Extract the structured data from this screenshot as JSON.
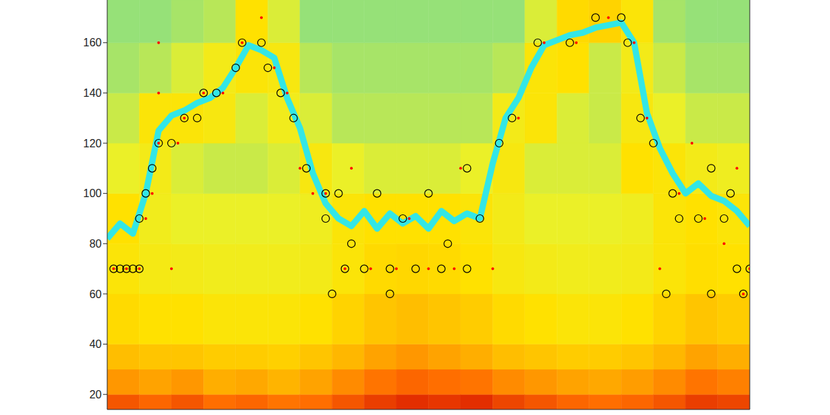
{
  "chart_data": {
    "type": "heatmap",
    "xlim": [
      0,
      100
    ],
    "ylim": [
      14,
      177
    ],
    "yticks": [
      20,
      40,
      60,
      80,
      100,
      120,
      140,
      160
    ],
    "tick_labels": "y",
    "heatmap": {
      "x_edges": [
        0,
        5,
        10,
        15,
        20,
        25,
        30,
        35,
        40,
        45,
        50,
        55,
        60,
        65,
        70,
        75,
        80,
        85,
        90,
        95,
        100
      ],
      "y_edges": [
        14,
        20,
        30,
        40,
        60,
        80,
        100,
        120,
        140,
        160,
        177
      ],
      "values": [
        [
          0.9,
          0.88,
          0.9,
          0.87,
          0.88,
          0.86,
          0.87,
          0.9,
          0.93,
          0.95,
          0.94,
          0.95,
          0.92,
          0.9,
          0.88,
          0.87,
          0.88,
          0.9,
          0.93,
          0.92
        ],
        [
          0.8,
          0.78,
          0.8,
          0.76,
          0.77,
          0.75,
          0.78,
          0.82,
          0.86,
          0.88,
          0.87,
          0.86,
          0.82,
          0.8,
          0.78,
          0.77,
          0.79,
          0.82,
          0.86,
          0.84
        ],
        [
          0.72,
          0.7,
          0.7,
          0.68,
          0.68,
          0.67,
          0.7,
          0.74,
          0.78,
          0.8,
          0.78,
          0.76,
          0.72,
          0.7,
          0.68,
          0.68,
          0.7,
          0.74,
          0.78,
          0.76
        ],
        [
          0.64,
          0.62,
          0.62,
          0.6,
          0.6,
          0.6,
          0.62,
          0.66,
          0.7,
          0.72,
          0.7,
          0.68,
          0.64,
          0.62,
          0.6,
          0.6,
          0.62,
          0.66,
          0.7,
          0.68
        ],
        [
          0.6,
          0.57,
          0.56,
          0.55,
          0.55,
          0.55,
          0.56,
          0.6,
          0.64,
          0.65,
          0.64,
          0.62,
          0.58,
          0.56,
          0.55,
          0.55,
          0.56,
          0.6,
          0.63,
          0.62
        ],
        [
          0.62,
          0.55,
          0.52,
          0.52,
          0.52,
          0.52,
          0.54,
          0.6,
          0.62,
          0.62,
          0.62,
          0.6,
          0.56,
          0.52,
          0.52,
          0.52,
          0.54,
          0.6,
          0.62,
          0.6
        ],
        [
          0.52,
          0.56,
          0.5,
          0.48,
          0.48,
          0.5,
          0.58,
          0.52,
          0.5,
          0.5,
          0.5,
          0.52,
          0.58,
          0.5,
          0.5,
          0.5,
          0.62,
          0.6,
          0.56,
          0.54
        ],
        [
          0.48,
          0.6,
          0.6,
          0.58,
          0.5,
          0.55,
          0.5,
          0.46,
          0.46,
          0.46,
          0.46,
          0.46,
          0.56,
          0.6,
          0.5,
          0.48,
          0.58,
          0.52,
          0.48,
          0.48
        ],
        [
          0.44,
          0.46,
          0.5,
          0.56,
          0.6,
          0.58,
          0.46,
          0.44,
          0.44,
          0.44,
          0.44,
          0.44,
          0.46,
          0.6,
          0.62,
          0.48,
          0.56,
          0.48,
          0.44,
          0.44
        ],
        [
          0.42,
          0.42,
          0.44,
          0.46,
          0.62,
          0.5,
          0.42,
          0.42,
          0.42,
          0.42,
          0.42,
          0.42,
          0.42,
          0.5,
          0.64,
          0.66,
          0.6,
          0.44,
          0.42,
          0.42
        ]
      ]
    },
    "series": [
      {
        "type": "line",
        "color": "#33e6e6",
        "x": [
          0,
          2,
          4,
          6,
          8,
          10,
          12,
          14,
          16,
          18,
          20,
          22,
          24,
          26,
          28,
          30,
          32,
          34,
          36,
          38,
          40,
          42,
          44,
          46,
          48,
          50,
          52,
          54,
          56,
          58,
          60,
          62,
          64,
          66,
          68,
          70,
          72,
          74,
          76,
          78,
          80,
          82,
          84,
          86,
          88,
          90,
          92,
          94,
          96,
          98,
          100
        ],
        "values": [
          82,
          88,
          84,
          100,
          125,
          131,
          133,
          136,
          138,
          142,
          150,
          159,
          157,
          154,
          138,
          126,
          108,
          96,
          90,
          87,
          93,
          86,
          92,
          88,
          91,
          86,
          93,
          89,
          92,
          90,
          112,
          130,
          138,
          150,
          159,
          161,
          163,
          164,
          166,
          167,
          168,
          160,
          132,
          118,
          108,
          100,
          104,
          99,
          97,
          93,
          87
        ]
      },
      {
        "type": "scatter",
        "marker": "circle_open",
        "color": "#000000",
        "x": [
          1,
          2,
          3,
          4,
          5,
          5,
          6,
          7,
          8,
          10,
          12,
          14,
          15,
          17,
          20,
          21,
          24,
          25,
          27,
          29,
          31,
          34,
          36,
          34,
          37,
          40,
          44,
          48,
          52,
          56,
          35,
          44,
          38,
          42,
          46,
          50,
          53,
          56,
          58,
          61,
          63,
          67,
          72,
          76,
          80,
          81,
          83,
          85,
          88,
          89,
          87,
          94,
          94,
          96,
          98,
          100,
          99,
          92,
          97
        ],
        "values": [
          70,
          70,
          70,
          70,
          70,
          90,
          100,
          110,
          120,
          120,
          130,
          130,
          140,
          140,
          150,
          160,
          160,
          150,
          140,
          130,
          110,
          100,
          100,
          90,
          70,
          70,
          70,
          70,
          70,
          70,
          60,
          60,
          80,
          100,
          90,
          100,
          80,
          110,
          90,
          120,
          130,
          160,
          160,
          170,
          170,
          160,
          130,
          120,
          100,
          90,
          60,
          110,
          60,
          90,
          70,
          70,
          60,
          90,
          100
        ]
      },
      {
        "type": "scatter",
        "marker": "dot",
        "color": "#ff0000",
        "x": [
          1,
          3,
          5,
          6,
          7,
          8,
          8,
          8,
          10,
          11,
          12,
          15,
          18,
          21,
          24,
          26,
          28,
          30,
          32,
          34,
          37,
          41,
          45,
          50,
          54,
          60,
          38,
          47,
          55,
          64,
          68,
          73,
          78,
          82,
          84,
          86,
          89,
          91,
          93,
          96,
          98,
          100,
          99
        ],
        "values": [
          70,
          70,
          70,
          90,
          100,
          160,
          140,
          120,
          70,
          120,
          130,
          140,
          140,
          160,
          170,
          150,
          140,
          110,
          100,
          100,
          70,
          70,
          70,
          70,
          70,
          70,
          110,
          90,
          110,
          130,
          160,
          160,
          170,
          160,
          130,
          70,
          100,
          120,
          90,
          80,
          110,
          70,
          60
        ]
      }
    ]
  }
}
